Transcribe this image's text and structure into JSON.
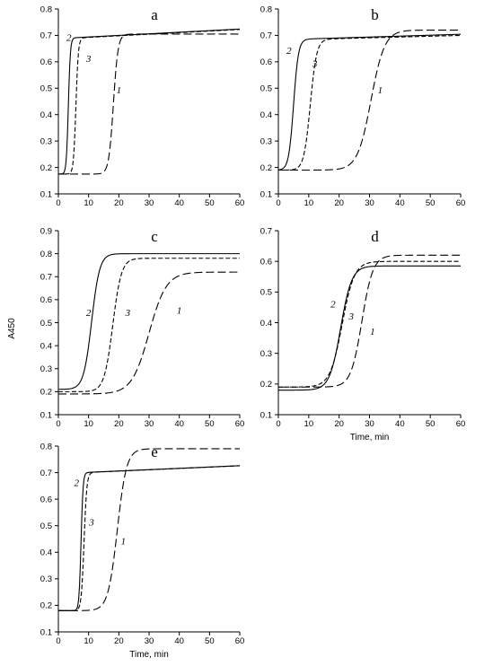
{
  "figure": {
    "ylabel": "A450",
    "xlabel": "Time, min"
  },
  "chart_data": [
    {
      "id": "a",
      "panel_label": "a",
      "type": "line",
      "xlim": [
        0,
        60
      ],
      "ylim": [
        0.1,
        0.8
      ],
      "xticks": [
        "0",
        "10",
        "20",
        "30",
        "40",
        "50",
        "60"
      ],
      "yticks": [
        "0.1",
        "0.2",
        "0.3",
        "0.4",
        "0.5",
        "0.6",
        "0.7",
        "0.8"
      ],
      "xlabel": "",
      "ylabel": "",
      "series": [
        {
          "name": "1",
          "style": "long-dash",
          "base": 0.175,
          "top": 0.705,
          "mid": 18.2,
          "k": 1.3,
          "drift": 0.0,
          "label_at": [
            20,
            0.48
          ]
        },
        {
          "name": "2",
          "style": "solid",
          "base": 0.175,
          "top": 0.69,
          "mid": 3.3,
          "k": 3.0,
          "drift": 0.0006,
          "label_at": [
            3.5,
            0.68
          ]
        },
        {
          "name": "3",
          "style": "dash",
          "base": 0.175,
          "top": 0.69,
          "mid": 5.8,
          "k": 2.5,
          "drift": 0.0006,
          "label_at": [
            10,
            0.6
          ]
        }
      ]
    },
    {
      "id": "b",
      "panel_label": "b",
      "type": "line",
      "xlim": [
        0,
        60
      ],
      "ylim": [
        0.1,
        0.8
      ],
      "xticks": [
        "0",
        "10",
        "20",
        "30",
        "40",
        "50",
        "60"
      ],
      "yticks": [
        "0.1",
        "0.2",
        "0.3",
        "0.4",
        "0.5",
        "0.6",
        "0.7",
        "0.8"
      ],
      "xlabel": "",
      "ylabel": "",
      "series": [
        {
          "name": "1",
          "style": "long-dash",
          "base": 0.19,
          "top": 0.72,
          "mid": 30.5,
          "k": 0.45,
          "drift": 0.0,
          "label_at": [
            33.5,
            0.48
          ]
        },
        {
          "name": "2",
          "style": "solid",
          "base": 0.19,
          "top": 0.685,
          "mid": 5.0,
          "k": 1.25,
          "drift": 0.00035,
          "label_at": [
            3.5,
            0.63
          ]
        },
        {
          "name": "3",
          "style": "dash",
          "base": 0.19,
          "top": 0.685,
          "mid": 10.5,
          "k": 0.95,
          "drift": 0.0003,
          "label_at": [
            12,
            0.58
          ]
        }
      ]
    },
    {
      "id": "c",
      "panel_label": "c",
      "type": "line",
      "xlim": [
        0,
        60
      ],
      "ylim": [
        0.1,
        0.9
      ],
      "xticks": [
        "0",
        "10",
        "20",
        "30",
        "40",
        "50",
        "60"
      ],
      "yticks": [
        "0.1",
        "0.2",
        "0.3",
        "0.4",
        "0.5",
        "0.6",
        "0.7",
        "0.8",
        "0.9"
      ],
      "xlabel": "",
      "ylabel": "A450",
      "series": [
        {
          "name": "1",
          "style": "long-dash",
          "base": 0.19,
          "top": 0.72,
          "mid": 30.0,
          "k": 0.35,
          "drift": 0.0,
          "label_at": [
            40,
            0.54
          ]
        },
        {
          "name": "2",
          "style": "solid",
          "base": 0.21,
          "top": 0.8,
          "mid": 11.0,
          "k": 0.75,
          "drift": 0.0,
          "label_at": [
            10,
            0.53
          ]
        },
        {
          "name": "3",
          "style": "dash",
          "base": 0.2,
          "top": 0.78,
          "mid": 18.0,
          "k": 0.7,
          "drift": 0.0,
          "label_at": [
            23,
            0.53
          ]
        }
      ]
    },
    {
      "id": "d",
      "panel_label": "d",
      "type": "line",
      "xlim": [
        0,
        60
      ],
      "ylim": [
        0.1,
        0.7
      ],
      "xticks": [
        "0",
        "10",
        "20",
        "30",
        "40",
        "50",
        "60"
      ],
      "yticks": [
        "0.1",
        "0.2",
        "0.3",
        "0.4",
        "0.5",
        "0.6",
        "0.7"
      ],
      "xlabel": "Time, min",
      "ylabel": "",
      "series": [
        {
          "name": "1",
          "style": "long-dash",
          "base": 0.19,
          "top": 0.62,
          "mid": 27.5,
          "k": 0.55,
          "drift": 0.0,
          "label_at": [
            31,
            0.36
          ]
        },
        {
          "name": "2",
          "style": "solid",
          "base": 0.18,
          "top": 0.585,
          "mid": 20.5,
          "k": 0.55,
          "drift": 0.0,
          "label_at": [
            18,
            0.45
          ]
        },
        {
          "name": "3",
          "style": "dash",
          "base": 0.19,
          "top": 0.6,
          "mid": 21.0,
          "k": 0.5,
          "drift": 0.0,
          "label_at": [
            24,
            0.41
          ]
        }
      ]
    },
    {
      "id": "e",
      "panel_label": "e",
      "type": "line",
      "xlim": [
        0,
        60
      ],
      "ylim": [
        0.1,
        0.8
      ],
      "xticks": [
        "0",
        "10",
        "20",
        "30",
        "40",
        "50",
        "60"
      ],
      "yticks": [
        "0.1",
        "0.2",
        "0.3",
        "0.4",
        "0.5",
        "0.6",
        "0.7",
        "0.8"
      ],
      "xlabel": "Time, min",
      "ylabel": "",
      "series": [
        {
          "name": "1",
          "style": "long-dash",
          "base": 0.18,
          "top": 0.79,
          "mid": 19.5,
          "k": 0.65,
          "drift": 0.0,
          "label_at": [
            21.5,
            0.43
          ]
        },
        {
          "name": "2",
          "style": "solid",
          "base": 0.18,
          "top": 0.7,
          "mid": 7.5,
          "k": 3.0,
          "drift": 0.0005,
          "label_at": [
            6,
            0.65
          ]
        },
        {
          "name": "3",
          "style": "dash",
          "base": 0.18,
          "top": 0.7,
          "mid": 8.5,
          "k": 2.2,
          "drift": 0.0005,
          "label_at": [
            11,
            0.5
          ]
        }
      ]
    }
  ]
}
